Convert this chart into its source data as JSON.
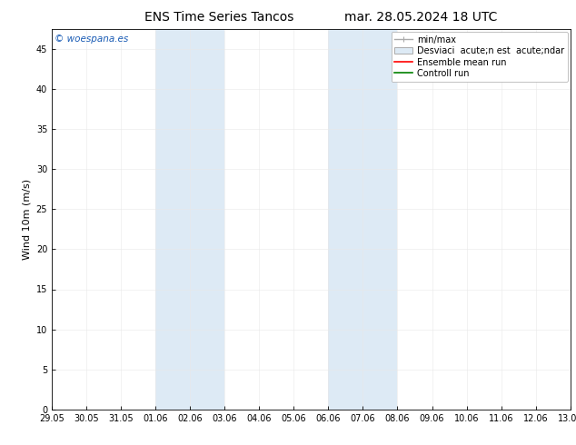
{
  "title": "ENS Time Series Tancos",
  "title_right": "mar. 28.05.2024 18 UTC",
  "ylabel": "Wind 10m (m/s)",
  "watermark": "© woespana.es",
  "xlim_dates": [
    "29.05",
    "30.05",
    "31.05",
    "01.06",
    "02.06",
    "03.06",
    "04.06",
    "05.06",
    "06.06",
    "07.06",
    "08.06",
    "09.06",
    "10.06",
    "11.06",
    "12.06",
    "13.06"
  ],
  "ylim": [
    0,
    47.5
  ],
  "yticks": [
    0,
    5,
    10,
    15,
    20,
    25,
    30,
    35,
    40,
    45
  ],
  "shaded_regions": [
    {
      "xstart": 3,
      "xend": 5,
      "color": "#ddeaf5"
    },
    {
      "xstart": 8,
      "xend": 10,
      "color": "#ddeaf5"
    }
  ],
  "bg_color": "#ffffff",
  "plot_bg_color": "#ffffff",
  "grid_color": "#dddddd",
  "title_fontsize": 10,
  "tick_fontsize": 7,
  "ylabel_fontsize": 8,
  "watermark_color": "#1a5cb5",
  "watermark_fontsize": 7.5,
  "legend_fontsize": 7,
  "minmax_label": "min/max",
  "std_label": "Desviaci  acute;n est  acute;ndar",
  "ens_label": "Ensemble mean run",
  "ctrl_label": "Controll run"
}
